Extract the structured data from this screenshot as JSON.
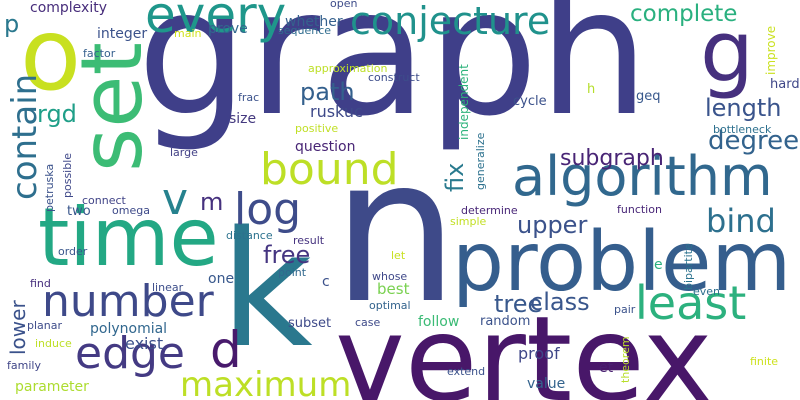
{
  "words": [
    {
      "text": "graph",
      "color": "#3f3f89"
    },
    {
      "text": "n",
      "color": "#3e4a89"
    },
    {
      "text": "vertex",
      "color": "#481769"
    },
    {
      "text": "k",
      "color": "#2a788e"
    },
    {
      "text": "problem",
      "color": "#355e8d"
    },
    {
      "text": "time",
      "color": "#23a884"
    },
    {
      "text": "set",
      "color": "#3cbc75"
    },
    {
      "text": "o",
      "color": "#c8e020"
    },
    {
      "text": "algorithm",
      "color": "#31688e"
    },
    {
      "text": "every",
      "color": "#1f978b"
    },
    {
      "text": "conjecture",
      "color": "#20928c"
    },
    {
      "text": "g",
      "color": "#46307e"
    },
    {
      "text": "bound",
      "color": "#bddf26"
    },
    {
      "text": "number",
      "color": "#3e4989"
    },
    {
      "text": "edge",
      "color": "#443a83"
    },
    {
      "text": "least",
      "color": "#2cb17e"
    },
    {
      "text": "log",
      "color": "#3e4c8a"
    },
    {
      "text": "contain",
      "color": "#2e6f8e"
    },
    {
      "text": "maximum",
      "color": "#bddf26"
    },
    {
      "text": "d",
      "color": "#481a6c"
    },
    {
      "text": "v",
      "color": "#26828e"
    },
    {
      "text": "m",
      "color": "#46317e"
    },
    {
      "text": "bind",
      "color": "#2d708e"
    },
    {
      "text": "degree",
      "color": "#33638d"
    },
    {
      "text": "length",
      "color": "#3a548c"
    },
    {
      "text": "complete",
      "color": "#2ab07f"
    },
    {
      "text": "subgraph",
      "color": "#482475"
    },
    {
      "text": "upper",
      "color": "#3b528b"
    },
    {
      "text": "path",
      "color": "#34608d"
    },
    {
      "text": "free",
      "color": "#453581"
    },
    {
      "text": "fix",
      "color": "#297a8e"
    },
    {
      "text": "tree",
      "color": "#38588c"
    },
    {
      "text": "class",
      "color": "#39568c"
    },
    {
      "text": "rgd",
      "color": "#1f9f88"
    },
    {
      "text": "lower",
      "color": "#3b528b"
    },
    {
      "text": "p",
      "color": "#2a788e"
    },
    {
      "text": "polynomial",
      "color": "#31678e"
    },
    {
      "text": "exist",
      "color": "#3c508b"
    },
    {
      "text": "proof",
      "color": "#3f4788"
    },
    {
      "text": "size",
      "color": "#44397f"
    },
    {
      "text": "question",
      "color": "#482575"
    },
    {
      "text": "ruskuc",
      "color": "#3e4989"
    },
    {
      "text": "integer",
      "color": "#3b528b"
    },
    {
      "text": "prove",
      "color": "#31688e"
    },
    {
      "text": "whether",
      "color": "#35608d"
    },
    {
      "text": "complexity",
      "color": "#472d7b"
    },
    {
      "text": "parameter",
      "color": "#addc30"
    },
    {
      "text": "one",
      "color": "#38588c"
    },
    {
      "text": "c",
      "color": "#3b518b"
    },
    {
      "text": "best",
      "color": "#7ad151"
    },
    {
      "text": "e",
      "color": "#29af7f"
    },
    {
      "text": "subset",
      "color": "#3e4a89"
    },
    {
      "text": "follow",
      "color": "#3bbb75"
    },
    {
      "text": "random",
      "color": "#3b528b"
    },
    {
      "text": "value",
      "color": "#33638d"
    },
    {
      "text": "et",
      "color": "#481f70"
    },
    {
      "text": "two",
      "color": "#39568c"
    },
    {
      "text": "improve",
      "color": "#cae11f"
    },
    {
      "text": "hard",
      "color": "#3f4788"
    },
    {
      "text": "independent",
      "color": "#2eb37c"
    },
    {
      "text": "generalize",
      "color": "#2c718e"
    },
    {
      "text": "construct",
      "color": "#3d4d8a"
    },
    {
      "text": "approximation",
      "color": "#bddf26"
    },
    {
      "text": "frac",
      "color": "#3b528b"
    },
    {
      "text": "positive",
      "color": "#c0df25"
    },
    {
      "text": "cycle",
      "color": "#3b518b"
    },
    {
      "text": "geq",
      "color": "#38588c"
    },
    {
      "text": "h",
      "color": "#b5de2b"
    },
    {
      "text": "bottleneck",
      "color": "#2d708e"
    },
    {
      "text": "large",
      "color": "#424086"
    },
    {
      "text": "factor",
      "color": "#355f8d"
    },
    {
      "text": "main",
      "color": "#d2e21b"
    },
    {
      "text": "sequence",
      "color": "#2f6c8e"
    },
    {
      "text": "open",
      "color": "#3e4c8a"
    },
    {
      "text": "possible",
      "color": "#3f4889"
    },
    {
      "text": "petruska",
      "color": "#3b528b"
    },
    {
      "text": "connect",
      "color": "#414487"
    },
    {
      "text": "omega",
      "color": "#3e4a89"
    },
    {
      "text": "function",
      "color": "#482677"
    },
    {
      "text": "determine",
      "color": "#482677"
    },
    {
      "text": "distance",
      "color": "#2c728e"
    },
    {
      "text": "result",
      "color": "#46337f"
    },
    {
      "text": "simple",
      "color": "#c2df23"
    },
    {
      "text": "let",
      "color": "#c8e020"
    },
    {
      "text": "bipartite",
      "color": "#2c728e"
    },
    {
      "text": "order",
      "color": "#39568c"
    },
    {
      "text": "point",
      "color": "#31688e"
    },
    {
      "text": "whose",
      "color": "#3f4889"
    },
    {
      "text": "find",
      "color": "#472f7d"
    },
    {
      "text": "linear",
      "color": "#3d4e8a"
    },
    {
      "text": "optimal",
      "color": "#33638d"
    },
    {
      "text": "pair",
      "color": "#3b528b"
    },
    {
      "text": "even",
      "color": "#2e6f8e"
    },
    {
      "text": "planar",
      "color": "#3e4c8a"
    },
    {
      "text": "case",
      "color": "#3e4a89"
    },
    {
      "text": "induce",
      "color": "#bddf26"
    },
    {
      "text": "theorem",
      "color": "#b8de29"
    },
    {
      "text": "finite",
      "color": "#cde11d"
    },
    {
      "text": "family",
      "color": "#404688"
    },
    {
      "text": "extend",
      "color": "#3b528b"
    }
  ]
}
